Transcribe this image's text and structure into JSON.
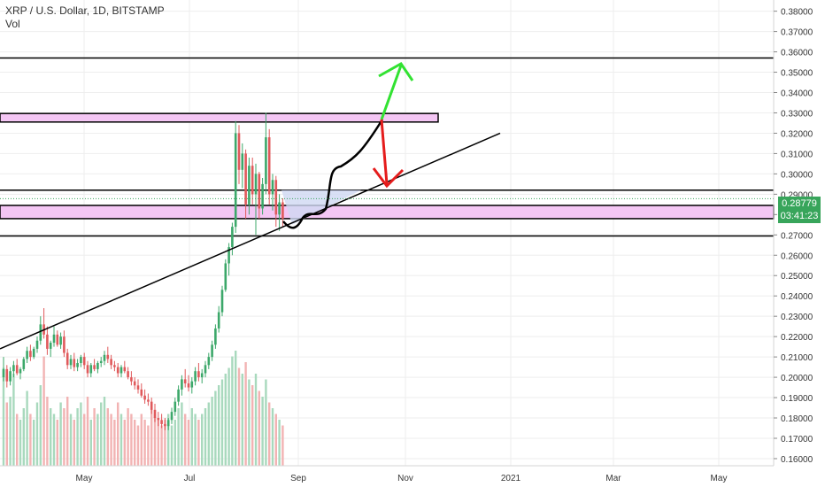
{
  "header": {
    "title": "XRP / U.S. Dollar, 1D, BITSTAMP",
    "sub": "Vol"
  },
  "price_badge": {
    "price": "0.28779",
    "countdown": "03:41:23"
  },
  "colors": {
    "up": "#3ca86a",
    "down": "#e0595b",
    "zone": "#f4c6f4",
    "zone_border": "#000000",
    "trend": "#000000",
    "arrow_up": "#32e232",
    "arrow_down": "#e51c1c",
    "fill_blue": "#cfd8f2",
    "current_line": "#38a55b",
    "grid": "#eeeeee"
  },
  "chart_data": {
    "type": "candlestick",
    "title": "XRP / U.S. Dollar, 1D, BITSTAMP",
    "ylabel": "",
    "xlabel": "",
    "ylim": [
      0.1565,
      0.3855
    ],
    "y_ticks": [
      "0.16000",
      "0.17000",
      "0.18000",
      "0.19000",
      "0.20000",
      "0.21000",
      "0.22000",
      "0.23000",
      "0.24000",
      "0.25000",
      "0.26000",
      "0.27000",
      "0.28000",
      "0.29000",
      "0.30000",
      "0.31000",
      "0.32000",
      "0.33000",
      "0.34000",
      "0.35000",
      "0.36000",
      "0.37000",
      "0.38000"
    ],
    "x_ticks": [
      "May",
      "Jul",
      "Sep",
      "Nov",
      "2021",
      "Mar",
      "May"
    ],
    "current_price": 0.28779,
    "candles": [
      [
        0.2,
        0.21,
        0.198,
        0.204
      ],
      [
        0.204,
        0.206,
        0.195,
        0.198
      ],
      [
        0.198,
        0.205,
        0.196,
        0.203
      ],
      [
        0.203,
        0.208,
        0.2,
        0.206
      ],
      [
        0.206,
        0.209,
        0.201,
        0.202
      ],
      [
        0.202,
        0.205,
        0.199,
        0.204
      ],
      [
        0.204,
        0.21,
        0.203,
        0.209
      ],
      [
        0.209,
        0.215,
        0.207,
        0.213
      ],
      [
        0.213,
        0.216,
        0.208,
        0.21
      ],
      [
        0.21,
        0.215,
        0.209,
        0.214
      ],
      [
        0.214,
        0.22,
        0.212,
        0.218
      ],
      [
        0.218,
        0.23,
        0.216,
        0.226
      ],
      [
        0.226,
        0.234,
        0.219,
        0.221
      ],
      [
        0.221,
        0.225,
        0.211,
        0.214
      ],
      [
        0.214,
        0.218,
        0.21,
        0.217
      ],
      [
        0.217,
        0.225,
        0.215,
        0.221
      ],
      [
        0.221,
        0.223,
        0.215,
        0.216
      ],
      [
        0.216,
        0.222,
        0.214,
        0.22
      ],
      [
        0.22,
        0.223,
        0.21,
        0.212
      ],
      [
        0.212,
        0.214,
        0.204,
        0.206
      ],
      [
        0.206,
        0.211,
        0.204,
        0.209
      ],
      [
        0.209,
        0.212,
        0.203,
        0.205
      ],
      [
        0.205,
        0.209,
        0.203,
        0.207
      ],
      [
        0.207,
        0.211,
        0.205,
        0.21
      ],
      [
        0.21,
        0.212,
        0.204,
        0.206
      ],
      [
        0.206,
        0.208,
        0.2,
        0.202
      ],
      [
        0.202,
        0.207,
        0.2,
        0.206
      ],
      [
        0.206,
        0.209,
        0.203,
        0.204
      ],
      [
        0.204,
        0.208,
        0.202,
        0.207
      ],
      [
        0.207,
        0.21,
        0.205,
        0.208
      ],
      [
        0.208,
        0.213,
        0.206,
        0.211
      ],
      [
        0.211,
        0.215,
        0.207,
        0.209
      ],
      [
        0.209,
        0.211,
        0.204,
        0.206
      ],
      [
        0.206,
        0.208,
        0.203,
        0.205
      ],
      [
        0.205,
        0.207,
        0.2,
        0.202
      ],
      [
        0.202,
        0.206,
        0.2,
        0.205
      ],
      [
        0.205,
        0.208,
        0.202,
        0.203
      ],
      [
        0.203,
        0.205,
        0.199,
        0.2
      ],
      [
        0.2,
        0.203,
        0.196,
        0.198
      ],
      [
        0.198,
        0.2,
        0.194,
        0.196
      ],
      [
        0.196,
        0.199,
        0.192,
        0.194
      ],
      [
        0.194,
        0.197,
        0.19,
        0.191
      ],
      [
        0.191,
        0.194,
        0.187,
        0.189
      ],
      [
        0.189,
        0.192,
        0.186,
        0.188
      ],
      [
        0.188,
        0.19,
        0.182,
        0.184
      ],
      [
        0.184,
        0.187,
        0.178,
        0.18
      ],
      [
        0.18,
        0.183,
        0.176,
        0.179
      ],
      [
        0.179,
        0.182,
        0.175,
        0.177
      ],
      [
        0.177,
        0.18,
        0.174,
        0.176
      ],
      [
        0.176,
        0.18,
        0.174,
        0.179
      ],
      [
        0.179,
        0.185,
        0.177,
        0.183
      ],
      [
        0.183,
        0.19,
        0.181,
        0.188
      ],
      [
        0.188,
        0.196,
        0.186,
        0.194
      ],
      [
        0.194,
        0.201,
        0.191,
        0.199
      ],
      [
        0.199,
        0.204,
        0.195,
        0.197
      ],
      [
        0.197,
        0.201,
        0.193,
        0.195
      ],
      [
        0.195,
        0.2,
        0.192,
        0.198
      ],
      [
        0.198,
        0.205,
        0.196,
        0.203
      ],
      [
        0.203,
        0.207,
        0.198,
        0.2
      ],
      [
        0.2,
        0.204,
        0.197,
        0.202
      ],
      [
        0.202,
        0.208,
        0.2,
        0.206
      ],
      [
        0.206,
        0.212,
        0.204,
        0.21
      ],
      [
        0.21,
        0.218,
        0.208,
        0.216
      ],
      [
        0.216,
        0.226,
        0.214,
        0.224
      ],
      [
        0.224,
        0.235,
        0.222,
        0.232
      ],
      [
        0.232,
        0.245,
        0.23,
        0.243
      ],
      [
        0.243,
        0.258,
        0.242,
        0.256
      ],
      [
        0.256,
        0.266,
        0.25,
        0.264
      ],
      [
        0.264,
        0.276,
        0.26,
        0.274
      ],
      [
        0.274,
        0.326,
        0.271,
        0.32
      ],
      [
        0.32,
        0.324,
        0.295,
        0.302
      ],
      [
        0.302,
        0.315,
        0.293,
        0.31
      ],
      [
        0.31,
        0.312,
        0.278,
        0.285
      ],
      [
        0.285,
        0.308,
        0.28,
        0.304
      ],
      [
        0.304,
        0.308,
        0.285,
        0.29
      ],
      [
        0.29,
        0.305,
        0.27,
        0.3
      ],
      [
        0.3,
        0.301,
        0.278,
        0.283
      ],
      [
        0.283,
        0.298,
        0.28,
        0.295
      ],
      [
        0.295,
        0.33,
        0.29,
        0.318
      ],
      [
        0.318,
        0.322,
        0.285,
        0.29
      ],
      [
        0.29,
        0.3,
        0.282,
        0.297
      ],
      [
        0.297,
        0.299,
        0.274,
        0.28
      ],
      [
        0.28,
        0.29,
        0.272,
        0.286
      ],
      [
        0.286,
        0.288,
        0.274,
        0.278
      ]
    ],
    "volume": [
      0.85,
      0.55,
      0.6,
      0.8,
      0.45,
      0.4,
      0.5,
      0.65,
      0.45,
      0.4,
      0.55,
      0.7,
      0.95,
      0.6,
      0.5,
      0.45,
      0.4,
      0.55,
      0.5,
      0.6,
      0.45,
      0.4,
      0.5,
      0.55,
      0.45,
      0.6,
      0.4,
      0.5,
      0.45,
      0.55,
      0.6,
      0.5,
      0.45,
      0.4,
      0.55,
      0.45,
      0.4,
      0.5,
      0.45,
      0.4,
      0.35,
      0.45,
      0.4,
      0.35,
      0.5,
      0.45,
      0.4,
      0.35,
      0.4,
      0.45,
      0.35,
      0.4,
      0.5,
      0.55,
      0.45,
      0.4,
      0.5,
      0.45,
      0.4,
      0.45,
      0.5,
      0.55,
      0.6,
      0.65,
      0.7,
      0.75,
      0.8,
      0.85,
      0.95,
      1.0,
      0.85,
      0.8,
      0.9,
      0.75,
      0.7,
      0.8,
      0.65,
      0.6,
      0.75,
      0.55,
      0.5,
      0.45,
      0.4,
      0.35
    ],
    "zones": [
      {
        "from": 0.3255,
        "to": 0.3297,
        "fill": "#f4c6f4"
      },
      {
        "from": 0.278,
        "to": 0.2845,
        "fill": "#f4c6f4"
      },
      {
        "from": 0.292,
        "to": 0.292,
        "fill": "none"
      },
      {
        "from": 0.2695,
        "to": 0.2695,
        "fill": "none"
      },
      {
        "from": 0.357,
        "to": 0.357,
        "fill": "none"
      }
    ],
    "trendline": [
      [
        0.0,
        0.214
      ],
      [
        609.0,
        0.32
      ]
    ]
  }
}
